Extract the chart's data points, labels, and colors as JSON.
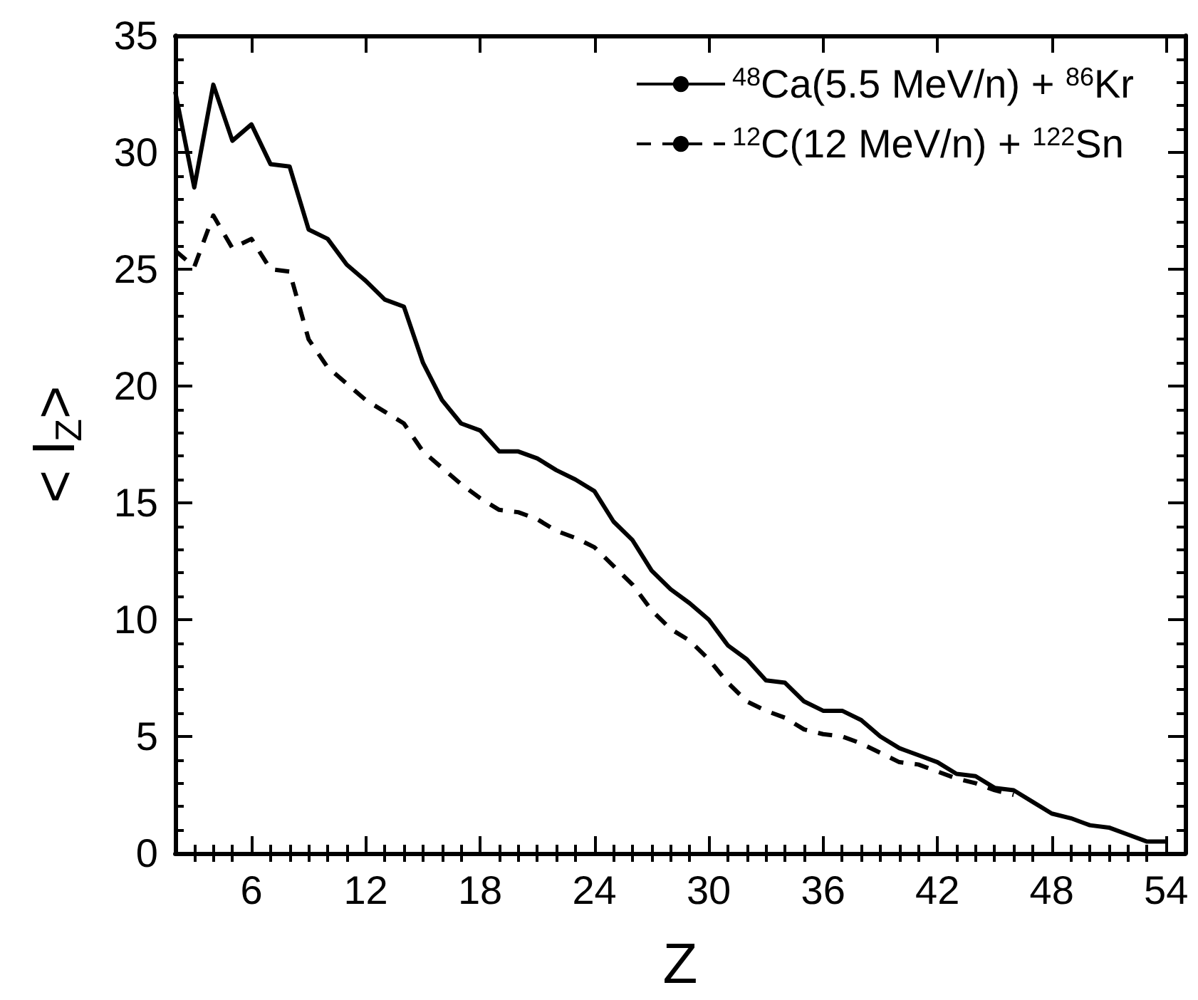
{
  "chart_data": {
    "type": "line",
    "xlabel": "Z",
    "ylabel": "< l$_{Z}$>",
    "xlim": [
      2,
      55
    ],
    "ylim": [
      0,
      35
    ],
    "xticks": [
      {
        "value": 3,
        "label": null
      },
      {
        "value": 4,
        "label": null
      },
      {
        "value": 5,
        "label": null
      },
      6,
      {
        "value": 7,
        "label": null
      },
      {
        "value": 8,
        "label": null
      },
      {
        "value": 9,
        "label": null
      },
      {
        "value": 10,
        "label": null
      },
      {
        "value": 11,
        "label": null
      },
      12,
      {
        "value": 13,
        "label": null
      },
      {
        "value": 14,
        "label": null
      },
      {
        "value": 15,
        "label": null
      },
      {
        "value": 16,
        "label": null
      },
      {
        "value": 17,
        "label": null
      },
      18,
      {
        "value": 19,
        "label": null
      },
      {
        "value": 20,
        "label": null
      },
      {
        "value": 21,
        "label": null
      },
      {
        "value": 22,
        "label": null
      },
      {
        "value": 23,
        "label": null
      },
      24,
      {
        "value": 25,
        "label": null
      },
      {
        "value": 26,
        "label": null
      },
      {
        "value": 27,
        "label": null
      },
      {
        "value": 28,
        "label": null
      },
      {
        "value": 29,
        "label": null
      },
      30,
      {
        "value": 31,
        "label": null
      },
      {
        "value": 32,
        "label": null
      },
      {
        "value": 33,
        "label": null
      },
      {
        "value": 34,
        "label": null
      },
      {
        "value": 35,
        "label": null
      },
      36,
      {
        "value": 37,
        "label": null
      },
      {
        "value": 38,
        "label": null
      },
      {
        "value": 39,
        "label": null
      },
      {
        "value": 40,
        "label": null
      },
      {
        "value": 41,
        "label": null
      },
      42,
      {
        "value": 43,
        "label": null
      },
      {
        "value": 44,
        "label": null
      },
      {
        "value": 45,
        "label": null
      },
      {
        "value": 46,
        "label": null
      },
      {
        "value": 47,
        "label": null
      },
      48,
      {
        "value": 49,
        "label": null
      },
      {
        "value": 50,
        "label": null
      },
      {
        "value": 51,
        "label": null
      },
      {
        "value": 52,
        "label": null
      },
      {
        "value": 53,
        "label": null
      },
      54
    ],
    "yticks": [
      0,
      {
        "value": 1,
        "label": null
      },
      {
        "value": 2,
        "label": null
      },
      {
        "value": 3,
        "label": null
      },
      {
        "value": 4,
        "label": null
      },
      5,
      {
        "value": 6,
        "label": null
      },
      {
        "value": 7,
        "label": null
      },
      {
        "value": 8,
        "label": null
      },
      {
        "value": 9,
        "label": null
      },
      10,
      {
        "value": 11,
        "label": null
      },
      {
        "value": 12,
        "label": null
      },
      {
        "value": 13,
        "label": null
      },
      {
        "value": 14,
        "label": null
      },
      15,
      {
        "value": 16,
        "label": null
      },
      {
        "value": 17,
        "label": null
      },
      {
        "value": 18,
        "label": null
      },
      {
        "value": 19,
        "label": null
      },
      20,
      {
        "value": 21,
        "label": null
      },
      {
        "value": 22,
        "label": null
      },
      {
        "value": 23,
        "label": null
      },
      {
        "value": 24,
        "label": null
      },
      25,
      {
        "value": 26,
        "label": null
      },
      {
        "value": 27,
        "label": null
      },
      {
        "value": 28,
        "label": null
      },
      {
        "value": 29,
        "label": null
      },
      30,
      {
        "value": 31,
        "label": null
      },
      {
        "value": 32,
        "label": null
      },
      {
        "value": 33,
        "label": null
      },
      {
        "value": 34,
        "label": null
      },
      35
    ],
    "legend": "top right",
    "series": [
      {
        "name": "$^{48}$Ca(5.5 MeV/n) + $^{86}$Kr",
        "color": "#000000",
        "line_style": "solid",
        "x": [
          2,
          3,
          4,
          5,
          6,
          7,
          8,
          9,
          10,
          11,
          12,
          13,
          14,
          15,
          16,
          17,
          18,
          19,
          20,
          21,
          22,
          23,
          24,
          25,
          26,
          27,
          28,
          29,
          30,
          31,
          32,
          33,
          34,
          35,
          36,
          37,
          38,
          39,
          40,
          41,
          42,
          43,
          44,
          45,
          46,
          47,
          48,
          49,
          50,
          51,
          52,
          53,
          54
        ],
        "values": [
          32.6,
          28.5,
          32.9,
          30.5,
          31.2,
          29.5,
          29.4,
          26.7,
          26.3,
          25.2,
          24.5,
          23.7,
          23.4,
          21.0,
          19.4,
          18.4,
          18.1,
          17.2,
          17.2,
          16.9,
          16.4,
          16.0,
          15.5,
          14.2,
          13.4,
          12.1,
          11.3,
          10.7,
          10.0,
          8.9,
          8.3,
          7.4,
          7.3,
          6.5,
          6.1,
          6.1,
          5.7,
          5.0,
          4.5,
          4.2,
          3.9,
          3.4,
          3.3,
          2.8,
          2.7,
          2.2,
          1.7,
          1.5,
          1.2,
          1.1,
          0.8,
          0.5,
          0.5
        ]
      },
      {
        "name": "$^{12}$C(12 MeV/n) + $^{122}$Sn",
        "color": "#000000",
        "line_style": "dashed",
        "x": [
          2,
          3,
          4,
          5,
          6,
          7,
          8,
          9,
          10,
          11,
          12,
          13,
          14,
          15,
          16,
          17,
          18,
          19,
          20,
          21,
          22,
          23,
          24,
          25,
          26,
          27,
          28,
          29,
          30,
          31,
          32,
          33,
          34,
          35,
          36,
          37,
          38,
          39,
          40,
          41,
          42,
          43,
          44,
          45,
          46
        ],
        "values": [
          25.8,
          25.1,
          27.3,
          25.9,
          26.3,
          25.0,
          24.9,
          22.0,
          20.8,
          20.1,
          19.4,
          18.9,
          18.4,
          17.2,
          16.5,
          15.8,
          15.2,
          14.7,
          14.6,
          14.3,
          13.8,
          13.5,
          13.1,
          12.3,
          11.5,
          10.4,
          9.6,
          9.1,
          8.3,
          7.3,
          6.5,
          6.1,
          5.8,
          5.3,
          5.1,
          5.0,
          4.7,
          4.3,
          3.9,
          3.8,
          3.5,
          3.2,
          3.0,
          2.7,
          2.5
        ]
      }
    ]
  }
}
